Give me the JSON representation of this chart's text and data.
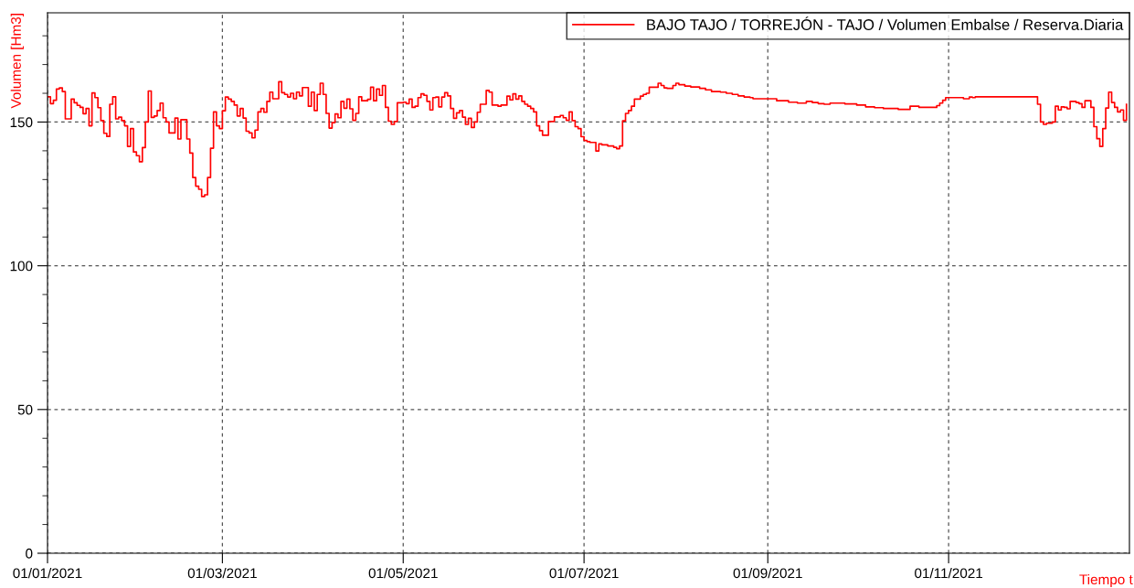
{
  "chart_data": {
    "type": "step",
    "xlabel": "Tiempo t",
    "ylabel": "Volumen [Hm3]",
    "x": [
      "2021-01-01",
      "2021-01-02",
      "2021-01-03",
      "2021-01-04",
      "2021-01-05",
      "2021-01-06",
      "2021-01-07",
      "2021-01-09",
      "2021-01-10",
      "2021-01-11",
      "2021-01-12",
      "2021-01-13",
      "2021-01-14",
      "2021-01-15",
      "2021-01-16",
      "2021-01-17",
      "2021-01-18",
      "2021-01-19",
      "2021-01-20",
      "2021-01-21",
      "2021-01-22",
      "2021-01-23",
      "2021-01-24",
      "2021-01-25",
      "2021-01-26",
      "2021-01-27",
      "2021-01-28",
      "2021-01-29",
      "2021-01-30",
      "2021-01-31",
      "2021-02-01",
      "2021-02-02",
      "2021-02-03",
      "2021-02-04",
      "2021-02-05",
      "2021-02-06",
      "2021-02-07",
      "2021-02-08",
      "2021-02-09",
      "2021-02-10",
      "2021-02-11",
      "2021-02-13",
      "2021-02-14",
      "2021-02-15",
      "2021-02-17",
      "2021-02-18",
      "2021-02-19",
      "2021-02-20",
      "2021-02-21",
      "2021-02-22",
      "2021-02-23",
      "2021-02-24",
      "2021-02-25",
      "2021-02-26",
      "2021-02-27",
      "2021-02-28",
      "2021-03-01",
      "2021-03-02",
      "2021-03-03",
      "2021-03-04",
      "2021-03-05",
      "2021-03-06",
      "2021-03-07",
      "2021-03-08",
      "2021-03-09",
      "2021-03-10",
      "2021-03-11",
      "2021-03-12",
      "2021-03-13",
      "2021-03-14",
      "2021-03-15",
      "2021-03-16",
      "2021-03-17",
      "2021-03-18",
      "2021-03-20",
      "2021-03-21",
      "2021-03-22",
      "2021-03-23",
      "2021-03-24",
      "2021-03-25",
      "2021-03-26",
      "2021-03-27",
      "2021-03-28",
      "2021-03-30",
      "2021-03-31",
      "2021-04-01",
      "2021-04-02",
      "2021-04-03",
      "2021-04-04",
      "2021-04-05",
      "2021-04-06",
      "2021-04-07",
      "2021-04-08",
      "2021-04-09",
      "2021-04-10",
      "2021-04-11",
      "2021-04-12",
      "2021-04-13",
      "2021-04-14",
      "2021-04-15",
      "2021-04-16",
      "2021-04-17",
      "2021-04-19",
      "2021-04-20",
      "2021-04-21",
      "2021-04-22",
      "2021-04-23",
      "2021-04-24",
      "2021-04-25",
      "2021-04-26",
      "2021-04-27",
      "2021-04-28",
      "2021-04-29",
      "2021-05-01",
      "2021-05-02",
      "2021-05-03",
      "2021-05-04",
      "2021-05-05",
      "2021-05-06",
      "2021-05-07",
      "2021-05-08",
      "2021-05-09",
      "2021-05-10",
      "2021-05-11",
      "2021-05-12",
      "2021-05-13",
      "2021-05-14",
      "2021-05-15",
      "2021-05-16",
      "2021-05-17",
      "2021-05-18",
      "2021-05-19",
      "2021-05-20",
      "2021-05-21",
      "2021-05-22",
      "2021-05-23",
      "2021-05-24",
      "2021-05-25",
      "2021-05-26",
      "2021-05-27",
      "2021-05-29",
      "2021-05-30",
      "2021-05-31",
      "2021-06-02",
      "2021-06-03",
      "2021-06-05",
      "2021-06-06",
      "2021-06-07",
      "2021-06-08",
      "2021-06-09",
      "2021-06-10",
      "2021-06-11",
      "2021-06-12",
      "2021-06-13",
      "2021-06-14",
      "2021-06-15",
      "2021-06-16",
      "2021-06-17",
      "2021-06-19",
      "2021-06-21",
      "2021-06-23",
      "2021-06-24",
      "2021-06-25",
      "2021-06-26",
      "2021-06-27",
      "2021-06-28",
      "2021-06-29",
      "2021-06-30",
      "2021-07-01",
      "2021-07-02",
      "2021-07-03",
      "2021-07-05",
      "2021-07-06",
      "2021-07-07",
      "2021-07-09",
      "2021-07-11",
      "2021-07-12",
      "2021-07-13",
      "2021-07-14",
      "2021-07-15",
      "2021-07-16",
      "2021-07-17",
      "2021-07-18",
      "2021-07-20",
      "2021-07-21",
      "2021-07-22",
      "2021-07-23",
      "2021-07-26",
      "2021-07-27",
      "2021-07-28",
      "2021-07-29",
      "2021-07-31",
      "2021-08-01",
      "2021-08-02",
      "2021-08-04",
      "2021-08-06",
      "2021-08-09",
      "2021-08-11",
      "2021-08-13",
      "2021-08-16",
      "2021-08-18",
      "2021-08-20",
      "2021-08-22",
      "2021-08-24",
      "2021-08-26",
      "2021-08-27",
      "2021-09-04",
      "2021-09-08",
      "2021-09-11",
      "2021-09-14",
      "2021-09-16",
      "2021-09-18",
      "2021-09-20",
      "2021-09-22",
      "2021-09-27",
      "2021-10-01",
      "2021-10-04",
      "2021-10-07",
      "2021-10-10",
      "2021-10-15",
      "2021-10-19",
      "2021-10-22",
      "2021-10-28",
      "2021-10-29",
      "2021-10-30",
      "2021-10-31",
      "2021-11-06",
      "2021-11-08",
      "2021-11-09",
      "2021-11-10",
      "2021-12-01",
      "2021-12-02",
      "2021-12-03",
      "2021-12-04",
      "2021-12-06",
      "2021-12-07",
      "2021-12-08",
      "2021-12-09",
      "2021-12-10",
      "2021-12-11",
      "2021-12-12",
      "2021-12-14",
      "2021-12-15",
      "2021-12-16",
      "2021-12-17",
      "2021-12-19",
      "2021-12-20",
      "2021-12-21",
      "2021-12-22",
      "2021-12-23",
      "2021-12-24",
      "2021-12-25",
      "2021-12-26",
      "2021-12-27",
      "2021-12-28",
      "2021-12-29",
      "2021-12-30",
      "2021-12-31"
    ],
    "series": [
      {
        "name": "BAJO TAJO / TORREJÓN - TAJO / Volumen Embalse / Reserva.Diaria",
        "color": "#ff0000",
        "values": [
          158.8,
          156.4,
          157.6,
          161.5,
          161.9,
          160.6,
          151.1,
          158,
          156.7,
          155.8,
          155.1,
          152.9,
          154.7,
          148.7,
          160.1,
          158.5,
          155,
          150.5,
          146.1,
          145,
          156.2,
          158.8,
          151.1,
          151.7,
          150.5,
          148.7,
          141.5,
          147.7,
          139.6,
          138.3,
          136.2,
          141.1,
          150,
          160.8,
          151.6,
          152.1,
          154,
          156.6,
          151.5,
          150,
          146.2,
          151.4,
          144.1,
          150.8,
          144.1,
          139.2,
          130.7,
          127.7,
          126.6,
          124.1,
          124.7,
          130.7,
          140.9,
          153.5,
          148.7,
          147.7,
          153.9,
          158.7,
          158,
          157.2,
          155.9,
          152.1,
          154.7,
          151.4,
          146.8,
          146.2,
          144.5,
          147.2,
          153.5,
          154.7,
          153.4,
          157.2,
          160.4,
          158.1,
          164,
          160.2,
          159.6,
          158.7,
          160,
          158.1,
          160.4,
          159.1,
          162,
          155.5,
          160.4,
          154,
          159.6,
          163.5,
          159.6,
          153,
          147.9,
          149.8,
          152.8,
          151.5,
          157.2,
          154.8,
          158,
          154.6,
          150.6,
          153,
          158.8,
          157.4,
          157.9,
          162.1,
          157.4,
          161.5,
          159.3,
          162.7,
          155.1,
          150.3,
          149.2,
          150.2,
          156.7,
          156.9,
          156.4,
          158,
          155.1,
          155.5,
          158.5,
          159.8,
          159.3,
          157.2,
          154.2,
          158.5,
          158.7,
          155.3,
          158.7,
          160.2,
          159.1,
          154.7,
          151.3,
          153.2,
          154,
          151.7,
          149.2,
          151.3,
          148.1,
          150,
          153.4,
          156.2,
          161,
          160.4,
          155.9,
          155.5,
          155.9,
          159,
          157.7,
          159.8,
          158,
          159.1,
          157.2,
          156.2,
          155.5,
          154.7,
          153.5,
          148.7,
          147,
          145.4,
          150.2,
          151.8,
          152.3,
          151.5,
          150.6,
          153.5,
          150.5,
          148.4,
          147.7,
          144.9,
          143.6,
          143.2,
          142.9,
          139.9,
          142.4,
          142.1,
          141.7,
          141.2,
          140.7,
          141.7,
          150.4,
          153,
          154,
          155.5,
          158,
          159,
          159.6,
          160,
          162.1,
          163.5,
          162.7,
          161.9,
          161.7,
          162.7,
          163.5,
          163,
          162.5,
          162.2,
          161.7,
          161.2,
          160.6,
          160.4,
          160,
          159.6,
          159.1,
          158.7,
          158.5,
          158.1,
          157.4,
          156.9,
          156.6,
          157.2,
          156.8,
          156.4,
          156.2,
          156.6,
          156.3,
          155.9,
          155.3,
          155,
          154.7,
          154.4,
          155.5,
          155.1,
          155.7,
          156.6,
          157.6,
          158.5,
          158.1,
          158.7,
          158.5,
          158.8,
          156.2,
          150,
          149.2,
          149.6,
          150,
          155.5,
          154.2,
          155.3,
          155.1,
          154.6,
          157.2,
          156.8,
          156.4,
          155.1,
          157.4,
          155.1,
          148.4,
          144.2,
          141.5,
          147.7,
          154.9,
          160.4,
          156.8,
          155.1,
          153.5,
          154.2,
          150.6,
          156.2
        ]
      }
    ],
    "xlim": [
      "2021-01-01",
      "2022-01-01"
    ],
    "xticks": [
      {
        "value": "2021-01-01",
        "label": "01/01/2021"
      },
      {
        "value": "2021-03-01",
        "label": "01/03/2021"
      },
      {
        "value": "2021-05-01",
        "label": "01/05/2021"
      },
      {
        "value": "2021-07-01",
        "label": "01/07/2021"
      },
      {
        "value": "2021-09-01",
        "label": "01/09/2021"
      },
      {
        "value": "2021-11-01",
        "label": "01/11/2021"
      }
    ],
    "ylim": [
      0,
      188
    ],
    "yticks": [
      0,
      {
        "value": 10,
        "label": null
      },
      {
        "value": 20,
        "label": null
      },
      {
        "value": 30,
        "label": null
      },
      {
        "value": 40,
        "label": null
      },
      50,
      {
        "value": 60,
        "label": null
      },
      {
        "value": 70,
        "label": null
      },
      {
        "value": 80,
        "label": null
      },
      {
        "value": 90,
        "label": null
      },
      100,
      {
        "value": 110,
        "label": null
      },
      {
        "value": 120,
        "label": null
      },
      {
        "value": 130,
        "label": null
      },
      {
        "value": 140,
        "label": null
      },
      150,
      {
        "value": 160,
        "label": null
      },
      {
        "value": 170,
        "label": null
      },
      {
        "value": 180,
        "label": null
      }
    ],
    "grid": true,
    "line_style": "solid",
    "marker": "none",
    "legend": "top right"
  }
}
